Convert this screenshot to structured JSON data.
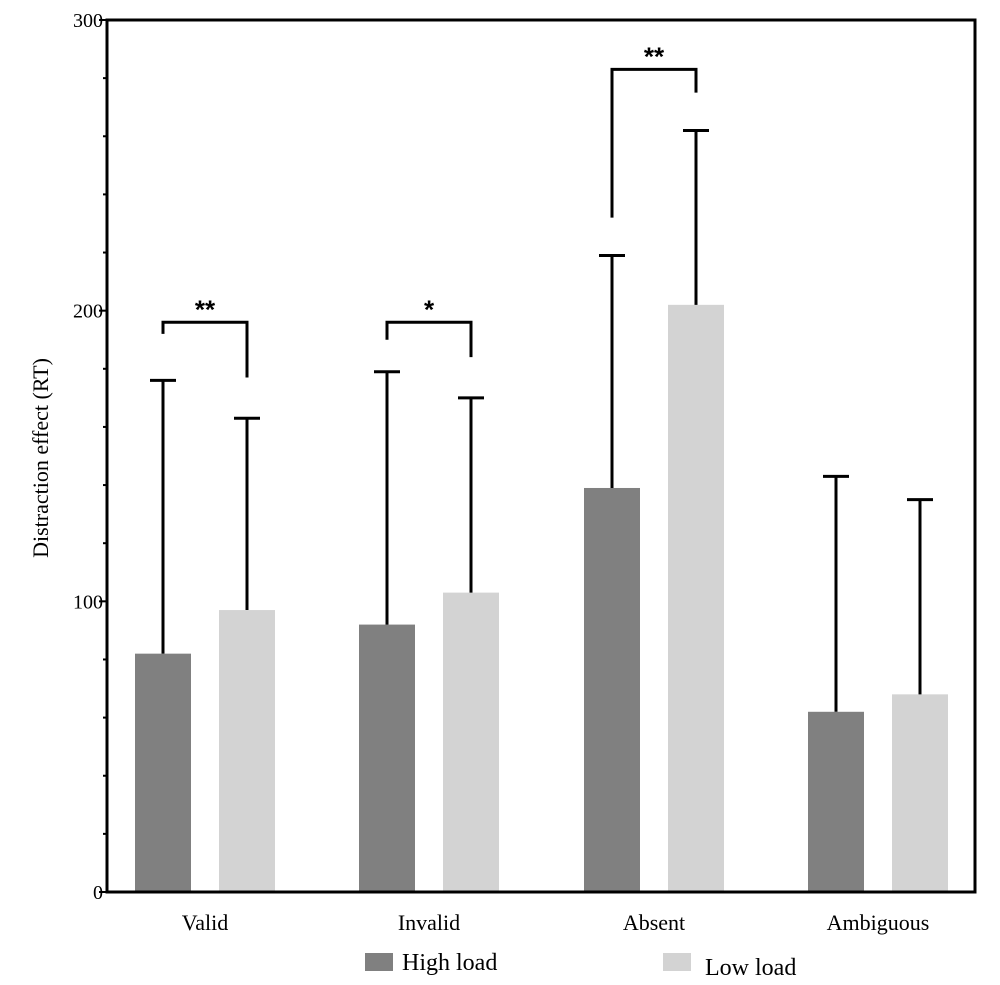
{
  "chart_data": {
    "type": "bar",
    "ylabel": "Distraction effect (RT)",
    "ylim": [
      0,
      300
    ],
    "yticks": [
      0,
      100,
      200,
      300
    ],
    "yminor_step": 20,
    "grid": false,
    "legend_position": "bottom",
    "categories": [
      "Valid",
      "Invalid",
      "Absent",
      "Ambiguous"
    ],
    "series": [
      {
        "name": "High load",
        "color": "#808080",
        "values": [
          82,
          92,
          139,
          62
        ],
        "error_upper": [
          176,
          179,
          219,
          143
        ]
      },
      {
        "name": "Low load",
        "color": "#d3d3d3",
        "values": [
          97,
          103,
          202,
          68
        ],
        "error_upper": [
          163,
          170,
          262,
          135
        ]
      }
    ],
    "significance": [
      {
        "category_index": 0,
        "label": "**",
        "bracket_y": 196,
        "left_drop_to": 192,
        "right_drop_to": 177
      },
      {
        "category_index": 1,
        "label": "*",
        "bracket_y": 196,
        "left_drop_to": 190,
        "right_drop_to": 184
      },
      {
        "category_index": 2,
        "label": "**",
        "bracket_y": 283,
        "left_drop_to": 232,
        "right_drop_to": 275
      }
    ]
  }
}
